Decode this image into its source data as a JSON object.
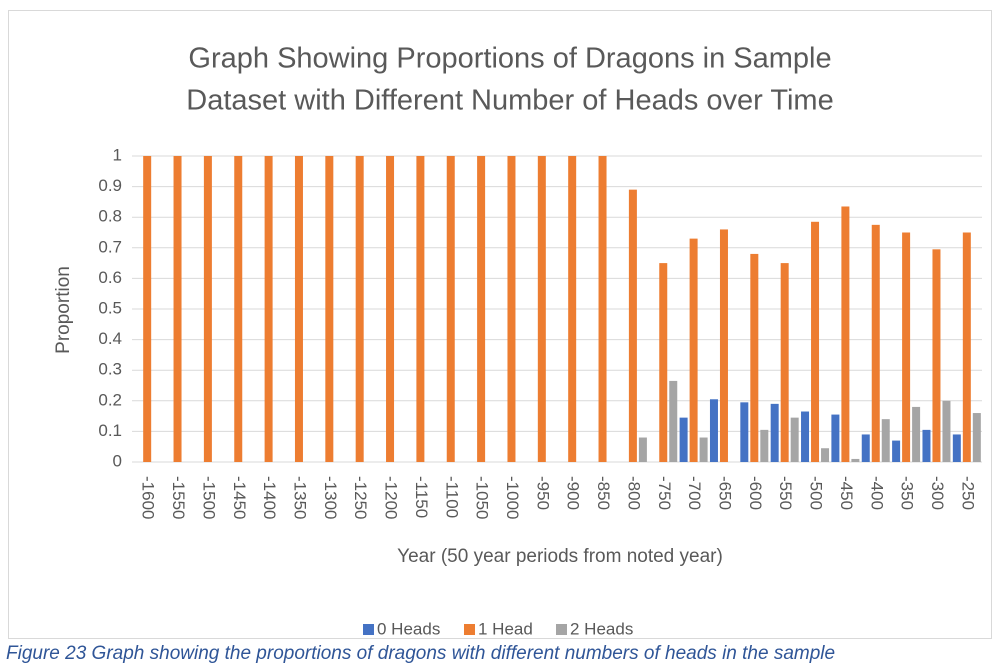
{
  "chart_data": {
    "type": "bar",
    "title": "Graph Showing Proportions of Dragons in Sample Dataset with Different Number of Heads over Time",
    "title_lines": [
      "Graph Showing Proportions of Dragons in Sample",
      "Dataset with Different Number of Heads over Time"
    ],
    "x_label": "Year (50 year periods from noted year)",
    "y_label": "Proportion",
    "categories": [
      "-1600",
      "-1550",
      "-1500",
      "-1450",
      "-1400",
      "-1350",
      "-1300",
      "-1250",
      "-1200",
      "-1150",
      "-1100",
      "-1050",
      "-1000",
      "-950",
      "-900",
      "-850",
      "-800",
      "-750",
      "-700",
      "-650",
      "-600",
      "-550",
      "-500",
      "-450",
      "-400",
      "-350",
      "-300",
      "-250"
    ],
    "series": [
      {
        "name": "0 Heads",
        "color": "#4472C4",
        "values": [
          0,
          0,
          0,
          0,
          0,
          0,
          0,
          0,
          0,
          0,
          0,
          0,
          0,
          0,
          0,
          0,
          0,
          0,
          0.145,
          0.205,
          0.195,
          0.19,
          0.165,
          0.155,
          0.09,
          0.07,
          0.105,
          0.09
        ]
      },
      {
        "name": "1 Head",
        "color": "#ED7D31",
        "values": [
          1,
          1,
          1,
          1,
          1,
          1,
          1,
          1,
          1,
          1,
          1,
          1,
          1,
          1,
          1,
          1,
          0.89,
          0.65,
          0.73,
          0.76,
          0.68,
          0.65,
          0.785,
          0.835,
          0.775,
          0.75,
          0.695,
          0.75
        ]
      },
      {
        "name": "2 Heads",
        "color": "#A5A5A5",
        "values": [
          0,
          0,
          0,
          0,
          0,
          0,
          0,
          0,
          0,
          0,
          0,
          0,
          0,
          0,
          0,
          0,
          0.08,
          0.265,
          0.08,
          0,
          0.105,
          0.145,
          0.045,
          0.01,
          0.14,
          0.18,
          0.2,
          0.16
        ]
      }
    ],
    "ylim": [
      0,
      1
    ],
    "yticks": [
      0,
      0.1,
      0.2,
      0.3,
      0.4,
      0.5,
      0.6,
      0.7,
      0.8,
      0.9,
      1
    ],
    "grid": true,
    "legend": "bottom"
  },
  "caption": "Figure 23 Graph showing the proportions of dragons with different numbers of heads in the sample"
}
